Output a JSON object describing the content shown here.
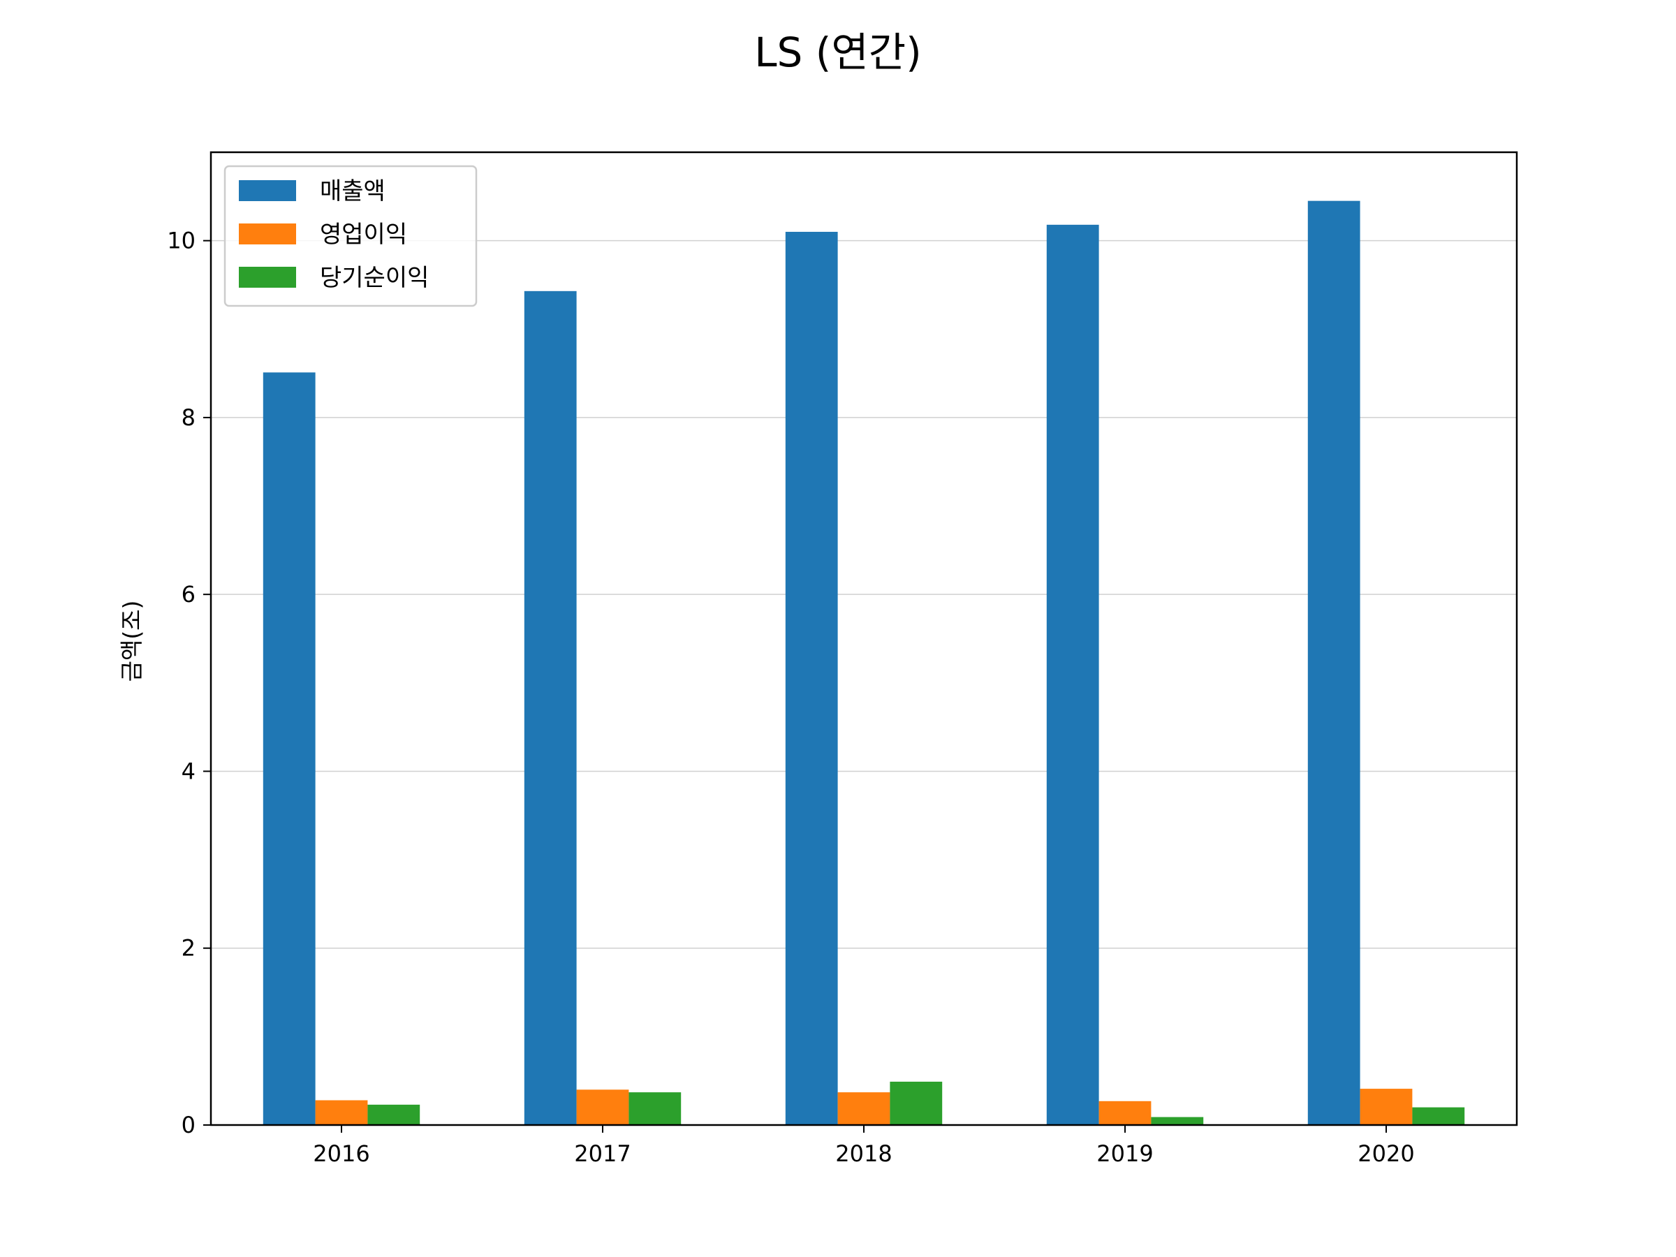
{
  "chart_data": {
    "type": "bar",
    "title": "LS (연간)",
    "xlabel": "",
    "ylabel": "금액(조)",
    "categories": [
      "2016",
      "2017",
      "2018",
      "2019",
      "2020"
    ],
    "series": [
      {
        "name": "매출액",
        "color": "#1f77b4",
        "values": [
          8.51,
          9.43,
          10.1,
          10.18,
          10.45
        ]
      },
      {
        "name": "영업이익",
        "color": "#ff7f0e",
        "values": [
          0.28,
          0.4,
          0.37,
          0.27,
          0.41
        ]
      },
      {
        "name": "당기순이익",
        "color": "#2ca02c",
        "values": [
          0.23,
          0.37,
          0.49,
          0.09,
          0.2
        ]
      }
    ],
    "ylim": [
      0,
      11
    ],
    "yticks": [
      "0",
      "2",
      "4",
      "6",
      "8",
      "10"
    ],
    "grid": "y",
    "legend": "upper left"
  }
}
